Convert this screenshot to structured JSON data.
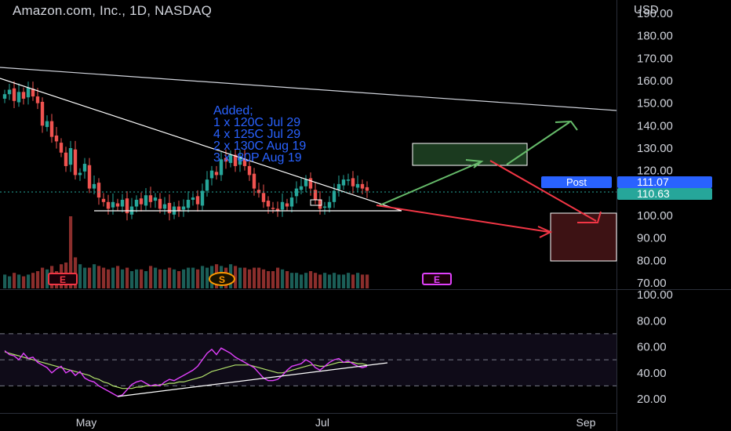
{
  "header": {
    "title": "Amazon.com, Inc., 1D, NASDAQ",
    "currency": "USD"
  },
  "annotation": {
    "lines": [
      "Added;",
      "1 x 120C Jul 29",
      "4 x 125C Jul 29",
      "2 x 130C Aug 19",
      "3 x  80P Aug 19"
    ]
  },
  "badges": {
    "post_label": "Post",
    "post_price": "111.07",
    "last_price": "110.63"
  },
  "events": [
    {
      "id": "earnings-1",
      "label": "E",
      "color": "#f23645"
    },
    {
      "id": "split",
      "label": "S",
      "color": "#ff9800"
    },
    {
      "id": "earnings-2",
      "label": "E",
      "color": "#e040fb"
    }
  ],
  "colors": {
    "up": "#26a69a",
    "down": "#ef5350",
    "rsi": "#e040fb",
    "rsi_ma": "#b2e26b",
    "accent": "#2962ff",
    "last": "#26a69a"
  },
  "chart_data": [
    {
      "type": "candlestick",
      "title": "Amazon.com, Inc., 1D, NASDAQ",
      "x_ticks": [
        "May",
        "Jul",
        "Sep"
      ],
      "price_axis": {
        "ticks": [
          "190.00",
          "180.00",
          "170.00",
          "160.00",
          "150.00",
          "140.00",
          "130.00",
          "120.00",
          "110.00",
          "100.00",
          "90.00",
          "80.00",
          "70.00"
        ],
        "ylim": [
          66.5,
          191.5
        ]
      },
      "closes": [
        154,
        156,
        151,
        155,
        152,
        157,
        153,
        150,
        140,
        142,
        135,
        133,
        128,
        122,
        130,
        118,
        119,
        123,
        112,
        114,
        108,
        106,
        103,
        106,
        104,
        107,
        101,
        104,
        107,
        105,
        109,
        106,
        108,
        103,
        105,
        101,
        104,
        102,
        104,
        107,
        108,
        105,
        111,
        116,
        120,
        118,
        125,
        124,
        127,
        122,
        126,
        122,
        118,
        112,
        110,
        106,
        104,
        103,
        102,
        106,
        104,
        108,
        112,
        113,
        116,
        112,
        107,
        103,
        104,
        106,
        111,
        114,
        116,
        116,
        113,
        114,
        112,
        111
      ],
      "volume": {
        "values": [
          8,
          7,
          9,
          8,
          7,
          8,
          9,
          10,
          12,
          11,
          13,
          10,
          14,
          15,
          16,
          18,
          14,
          12,
          12,
          14,
          13,
          12,
          11,
          12,
          13,
          11,
          12,
          10,
          11,
          11,
          10,
          13,
          12,
          11,
          11,
          12,
          11,
          10,
          11,
          12,
          12,
          11,
          13,
          12,
          13,
          14,
          13,
          12,
          14,
          13,
          12,
          12,
          11,
          12,
          12,
          11,
          10,
          10,
          12,
          11,
          10,
          9,
          9,
          8,
          9,
          10,
          9,
          8,
          9,
          8,
          9,
          8,
          8,
          9,
          8,
          9,
          8,
          8
        ]
      },
      "moving_average": {
        "name": "",
        "values": [
          100.5,
          100.5
        ]
      }
    },
    {
      "type": "line",
      "title": "",
      "y_ticks": [
        "100.00",
        "80.00",
        "60.00",
        "40.00",
        "20.00"
      ],
      "ylim": [
        16,
        100
      ],
      "bands": [
        30,
        50,
        70
      ],
      "series": [
        {
          "name": "",
          "values": [
            57,
            54,
            53,
            50,
            55,
            51,
            52,
            48,
            46,
            44,
            40,
            43,
            45,
            40,
            42,
            38,
            41,
            36,
            34,
            33,
            30,
            28,
            26,
            24,
            22,
            23,
            27,
            31,
            33,
            34,
            32,
            30,
            31,
            30,
            33,
            35,
            34,
            36,
            38,
            40,
            42,
            45,
            50,
            55,
            58,
            54,
            59,
            57,
            55,
            52,
            50,
            48,
            46,
            44,
            40,
            36,
            34,
            34,
            35,
            38,
            42,
            45,
            46,
            47,
            50,
            48,
            44,
            42,
            45,
            48,
            50,
            51,
            48,
            49,
            47,
            45,
            44,
            45
          ]
        },
        {
          "name": "",
          "values": [
            56,
            55,
            54,
            53,
            52,
            51,
            50,
            49,
            48,
            47,
            46,
            45,
            44,
            43,
            42,
            41,
            40,
            39,
            38,
            36,
            35,
            33,
            32,
            30,
            29,
            28,
            28,
            28,
            29,
            29,
            30,
            30,
            30,
            31,
            31,
            32,
            32,
            33,
            33,
            34,
            35,
            36,
            37,
            39,
            41,
            42,
            43,
            44,
            45,
            46,
            46,
            46,
            46,
            45,
            44,
            43,
            42,
            41,
            40,
            40,
            41,
            42,
            43,
            44,
            45,
            46,
            46,
            45,
            45,
            46,
            47,
            48,
            48,
            48,
            48,
            47,
            47,
            46
          ]
        }
      ]
    }
  ]
}
